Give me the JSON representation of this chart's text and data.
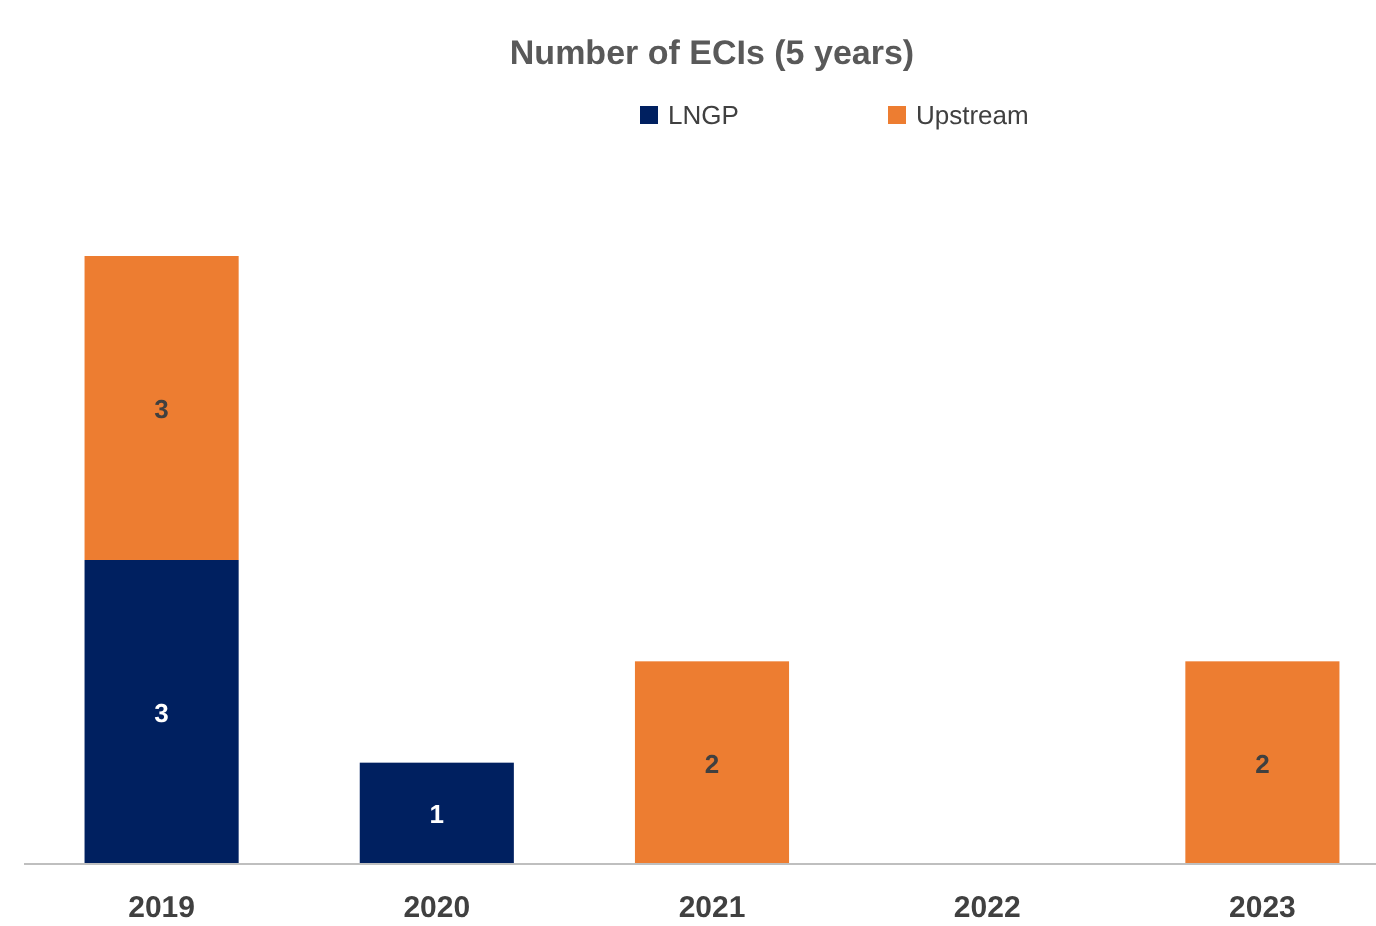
{
  "chart_data": {
    "type": "bar",
    "title": "Number of ECIs (5 years)",
    "categories": [
      "2019",
      "2020",
      "2021",
      "2022",
      "2023"
    ],
    "stacked": true,
    "data_labels": true,
    "legend": "top",
    "ylim": [
      0,
      6
    ],
    "series": [
      {
        "name": "LNGP",
        "color": "#002060",
        "values": [
          3,
          1,
          null,
          null,
          null
        ]
      },
      {
        "name": "Upstream",
        "color": "#ed7d31",
        "values": [
          3,
          null,
          2,
          null,
          2
        ]
      }
    ]
  }
}
